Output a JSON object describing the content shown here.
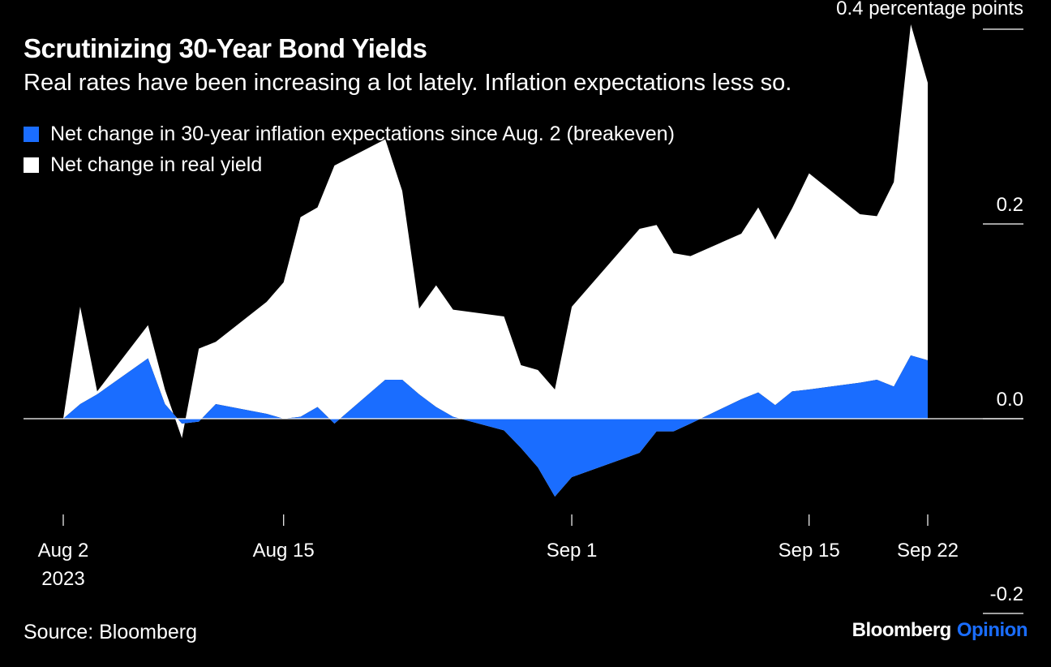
{
  "colors": {
    "background": "#000000",
    "text": "#ffffff",
    "breakeven": "#1a6dff",
    "real_yield": "#ffffff"
  },
  "source": "Source: Bloomberg",
  "brand": {
    "name": "Bloomberg",
    "suffix": "Opinion"
  },
  "chart_data": {
    "type": "area",
    "title": "Scrutinizing 30-Year Bond Yields",
    "subtitle": "Real rates have been increasing a lot lately. Inflation expectations less so.",
    "unit_label": "0.4 percentage points",
    "ylim": [
      -0.2,
      0.4
    ],
    "yticks": [
      {
        "value": -0.2,
        "label": "-0.2"
      },
      {
        "value": 0.0,
        "label": "0.0"
      },
      {
        "value": 0.2,
        "label": "0.2"
      },
      {
        "value": 0.4,
        "label": ""
      }
    ],
    "xlim": [
      "2023-08-02",
      "2023-09-22"
    ],
    "xticks": [
      {
        "date": "2023-08-02",
        "label": "Aug 2",
        "sublabel": "2023"
      },
      {
        "date": "2023-08-15",
        "label": "Aug 15",
        "sublabel": ""
      },
      {
        "date": "2023-09-01",
        "label": "Sep 1",
        "sublabel": ""
      },
      {
        "date": "2023-09-15",
        "label": "Sep 15",
        "sublabel": ""
      },
      {
        "date": "2023-09-22",
        "label": "Sep 22",
        "sublabel": ""
      }
    ],
    "grid": false,
    "legend_position": "top-left",
    "stacked": true,
    "x": [
      "2023-08-02",
      "2023-08-03",
      "2023-08-04",
      "2023-08-07",
      "2023-08-08",
      "2023-08-09",
      "2023-08-10",
      "2023-08-11",
      "2023-08-14",
      "2023-08-15",
      "2023-08-16",
      "2023-08-17",
      "2023-08-18",
      "2023-08-21",
      "2023-08-22",
      "2023-08-23",
      "2023-08-24",
      "2023-08-25",
      "2023-08-28",
      "2023-08-29",
      "2023-08-30",
      "2023-08-31",
      "2023-09-01",
      "2023-09-05",
      "2023-09-06",
      "2023-09-07",
      "2023-09-08",
      "2023-09-11",
      "2023-09-12",
      "2023-09-13",
      "2023-09-14",
      "2023-09-15",
      "2023-09-18",
      "2023-09-19",
      "2023-09-20",
      "2023-09-21",
      "2023-09-22"
    ],
    "series": [
      {
        "name": "Net change in 30-year inflation expectations since Aug. 2 (breakeven)",
        "values": [
          0.0,
          0.015,
          0.025,
          0.062,
          0.015,
          -0.005,
          -0.003,
          0.015,
          0.005,
          0.0,
          0.002,
          0.012,
          -0.005,
          0.04,
          0.04,
          0.025,
          0.012,
          0.002,
          -0.012,
          -0.03,
          -0.05,
          -0.08,
          -0.06,
          -0.035,
          -0.013,
          -0.013,
          -0.005,
          0.02,
          0.027,
          0.014,
          0.028,
          0.03,
          0.037,
          0.04,
          0.033,
          0.065,
          0.06
        ]
      },
      {
        "name": "Net change in real yield",
        "values": [
          0.0,
          0.1,
          0.003,
          0.034,
          0.015,
          -0.015,
          0.075,
          0.064,
          0.115,
          0.14,
          0.205,
          0.205,
          0.265,
          0.247,
          0.194,
          0.088,
          0.125,
          0.11,
          0.117,
          0.085,
          0.1,
          0.11,
          0.175,
          0.23,
          0.212,
          0.183,
          0.172,
          0.17,
          0.19,
          0.17,
          0.188,
          0.222,
          0.173,
          0.168,
          0.21,
          0.34,
          0.285
        ]
      }
    ]
  }
}
